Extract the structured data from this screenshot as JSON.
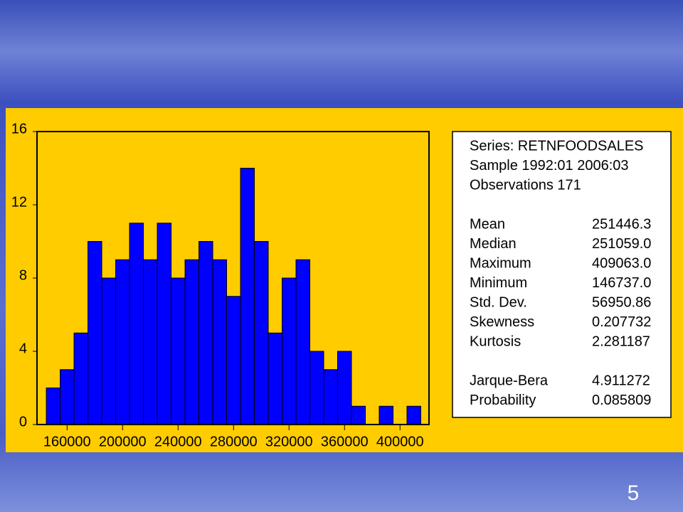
{
  "chart_data": {
    "type": "histogram",
    "bins": [
      145000,
      155000,
      165000,
      175000,
      185000,
      195000,
      205000,
      215000,
      225000,
      235000,
      245000,
      255000,
      265000,
      275000,
      285000,
      295000,
      305000,
      315000,
      325000,
      335000,
      345000,
      355000,
      365000,
      375000,
      385000,
      395000,
      405000,
      415000
    ],
    "values": [
      2,
      3,
      5,
      10,
      8,
      9,
      11,
      9,
      11,
      8,
      9,
      10,
      9,
      7,
      14,
      10,
      5,
      8,
      9,
      4,
      3,
      4,
      1,
      0,
      1,
      0,
      1
    ],
    "color": "#0000ff",
    "xlim": [
      138300,
      420900
    ],
    "xticks": [
      160000,
      200000,
      240000,
      280000,
      320000,
      360000,
      400000
    ],
    "ylim": [
      0,
      16
    ],
    "yticks": [
      0,
      4,
      8,
      12,
      16
    ]
  },
  "stats_box": {
    "header": [
      "Series: RETNFOODSALES",
      "Sample 1992:01 2006:03",
      "Observations 171"
    ],
    "rows": [
      [
        "Mean",
        "251446.3"
      ],
      [
        "Median",
        "251059.0"
      ],
      [
        "Maximum",
        "409063.0"
      ],
      [
        "Minimum",
        "146737.0"
      ],
      [
        "Std. Dev.",
        "56950.86"
      ],
      [
        "Skewness",
        "0.207732"
      ],
      [
        "Kurtosis",
        "2.281187"
      ]
    ],
    "test_rows": [
      [
        "Jarque-Bera",
        "4.911272"
      ],
      [
        "Probability",
        "0.085809"
      ]
    ]
  },
  "slide_number": 5
}
